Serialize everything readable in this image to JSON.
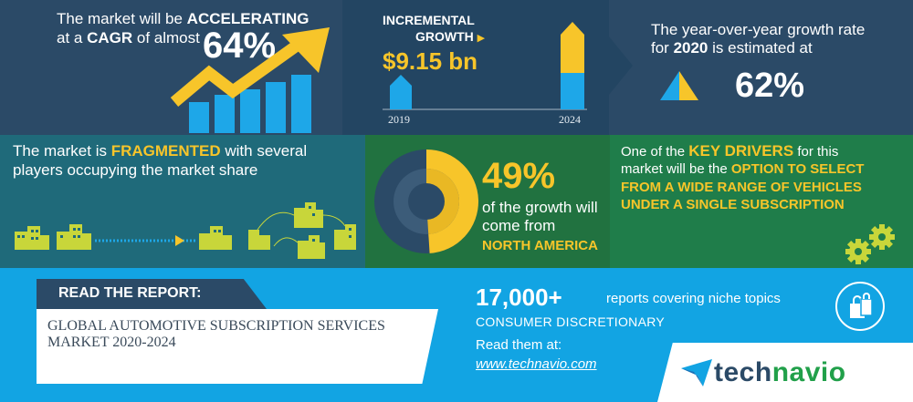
{
  "cagr": {
    "line1_pre": "The market will be ",
    "line1_em": "ACCELERATING",
    "line2_pre": "at a ",
    "line2_em": "CAGR",
    "line2_post": " of almost",
    "value": "64%"
  },
  "incremental": {
    "label1": "INCREMENTAL",
    "label2": "GROWTH",
    "value": "$9.15 bn",
    "year_start": "2019",
    "year_end": "2024"
  },
  "yoy": {
    "line1": "The year-over-year growth rate",
    "line2_pre": "for ",
    "line2_em": "2020",
    "line2_post": " is estimated at",
    "value": "62%"
  },
  "fragmented": {
    "line1_pre": "The market is ",
    "line1_em": "FRAGMENTED",
    "line1_post": " with several",
    "line2": "players occupying the market share"
  },
  "region": {
    "percent": "49%",
    "share_fraction": 0.49,
    "line1": "of the growth will",
    "line2": "come from",
    "name": "NORTH AMERICA"
  },
  "drivers": {
    "line1_pre": "One of the ",
    "line1_em": "KEY DRIVERS",
    "line1_post": " for this",
    "line2_pre": "market will be the ",
    "line2_em": "OPTION TO SELECT",
    "line3_em": "FROM A WIDE RANGE OF VEHICLES",
    "line4_em": "UNDER A SINGLE SUBSCRIPTION"
  },
  "report": {
    "label": "READ THE REPORT:",
    "title_line1": "GLOBAL AUTOMOTIVE SUBSCRIPTION SERVICES",
    "title_line2": "MARKET 2020-2024"
  },
  "reports": {
    "count": "17,000+",
    "count_desc": "reports covering niche topics",
    "category": "CONSUMER DISCRETIONARY",
    "read_at": "Read them at:",
    "url": "www.technavio.com"
  },
  "brand": {
    "part1": "tech",
    "part2": "navio"
  },
  "colors": {
    "navy": "#2b4a67",
    "teal": "#1f6a7a",
    "green": "#217240",
    "blue": "#12a4e3",
    "yellow": "#f7c52a",
    "bar_blue": "#1ea7e8"
  }
}
